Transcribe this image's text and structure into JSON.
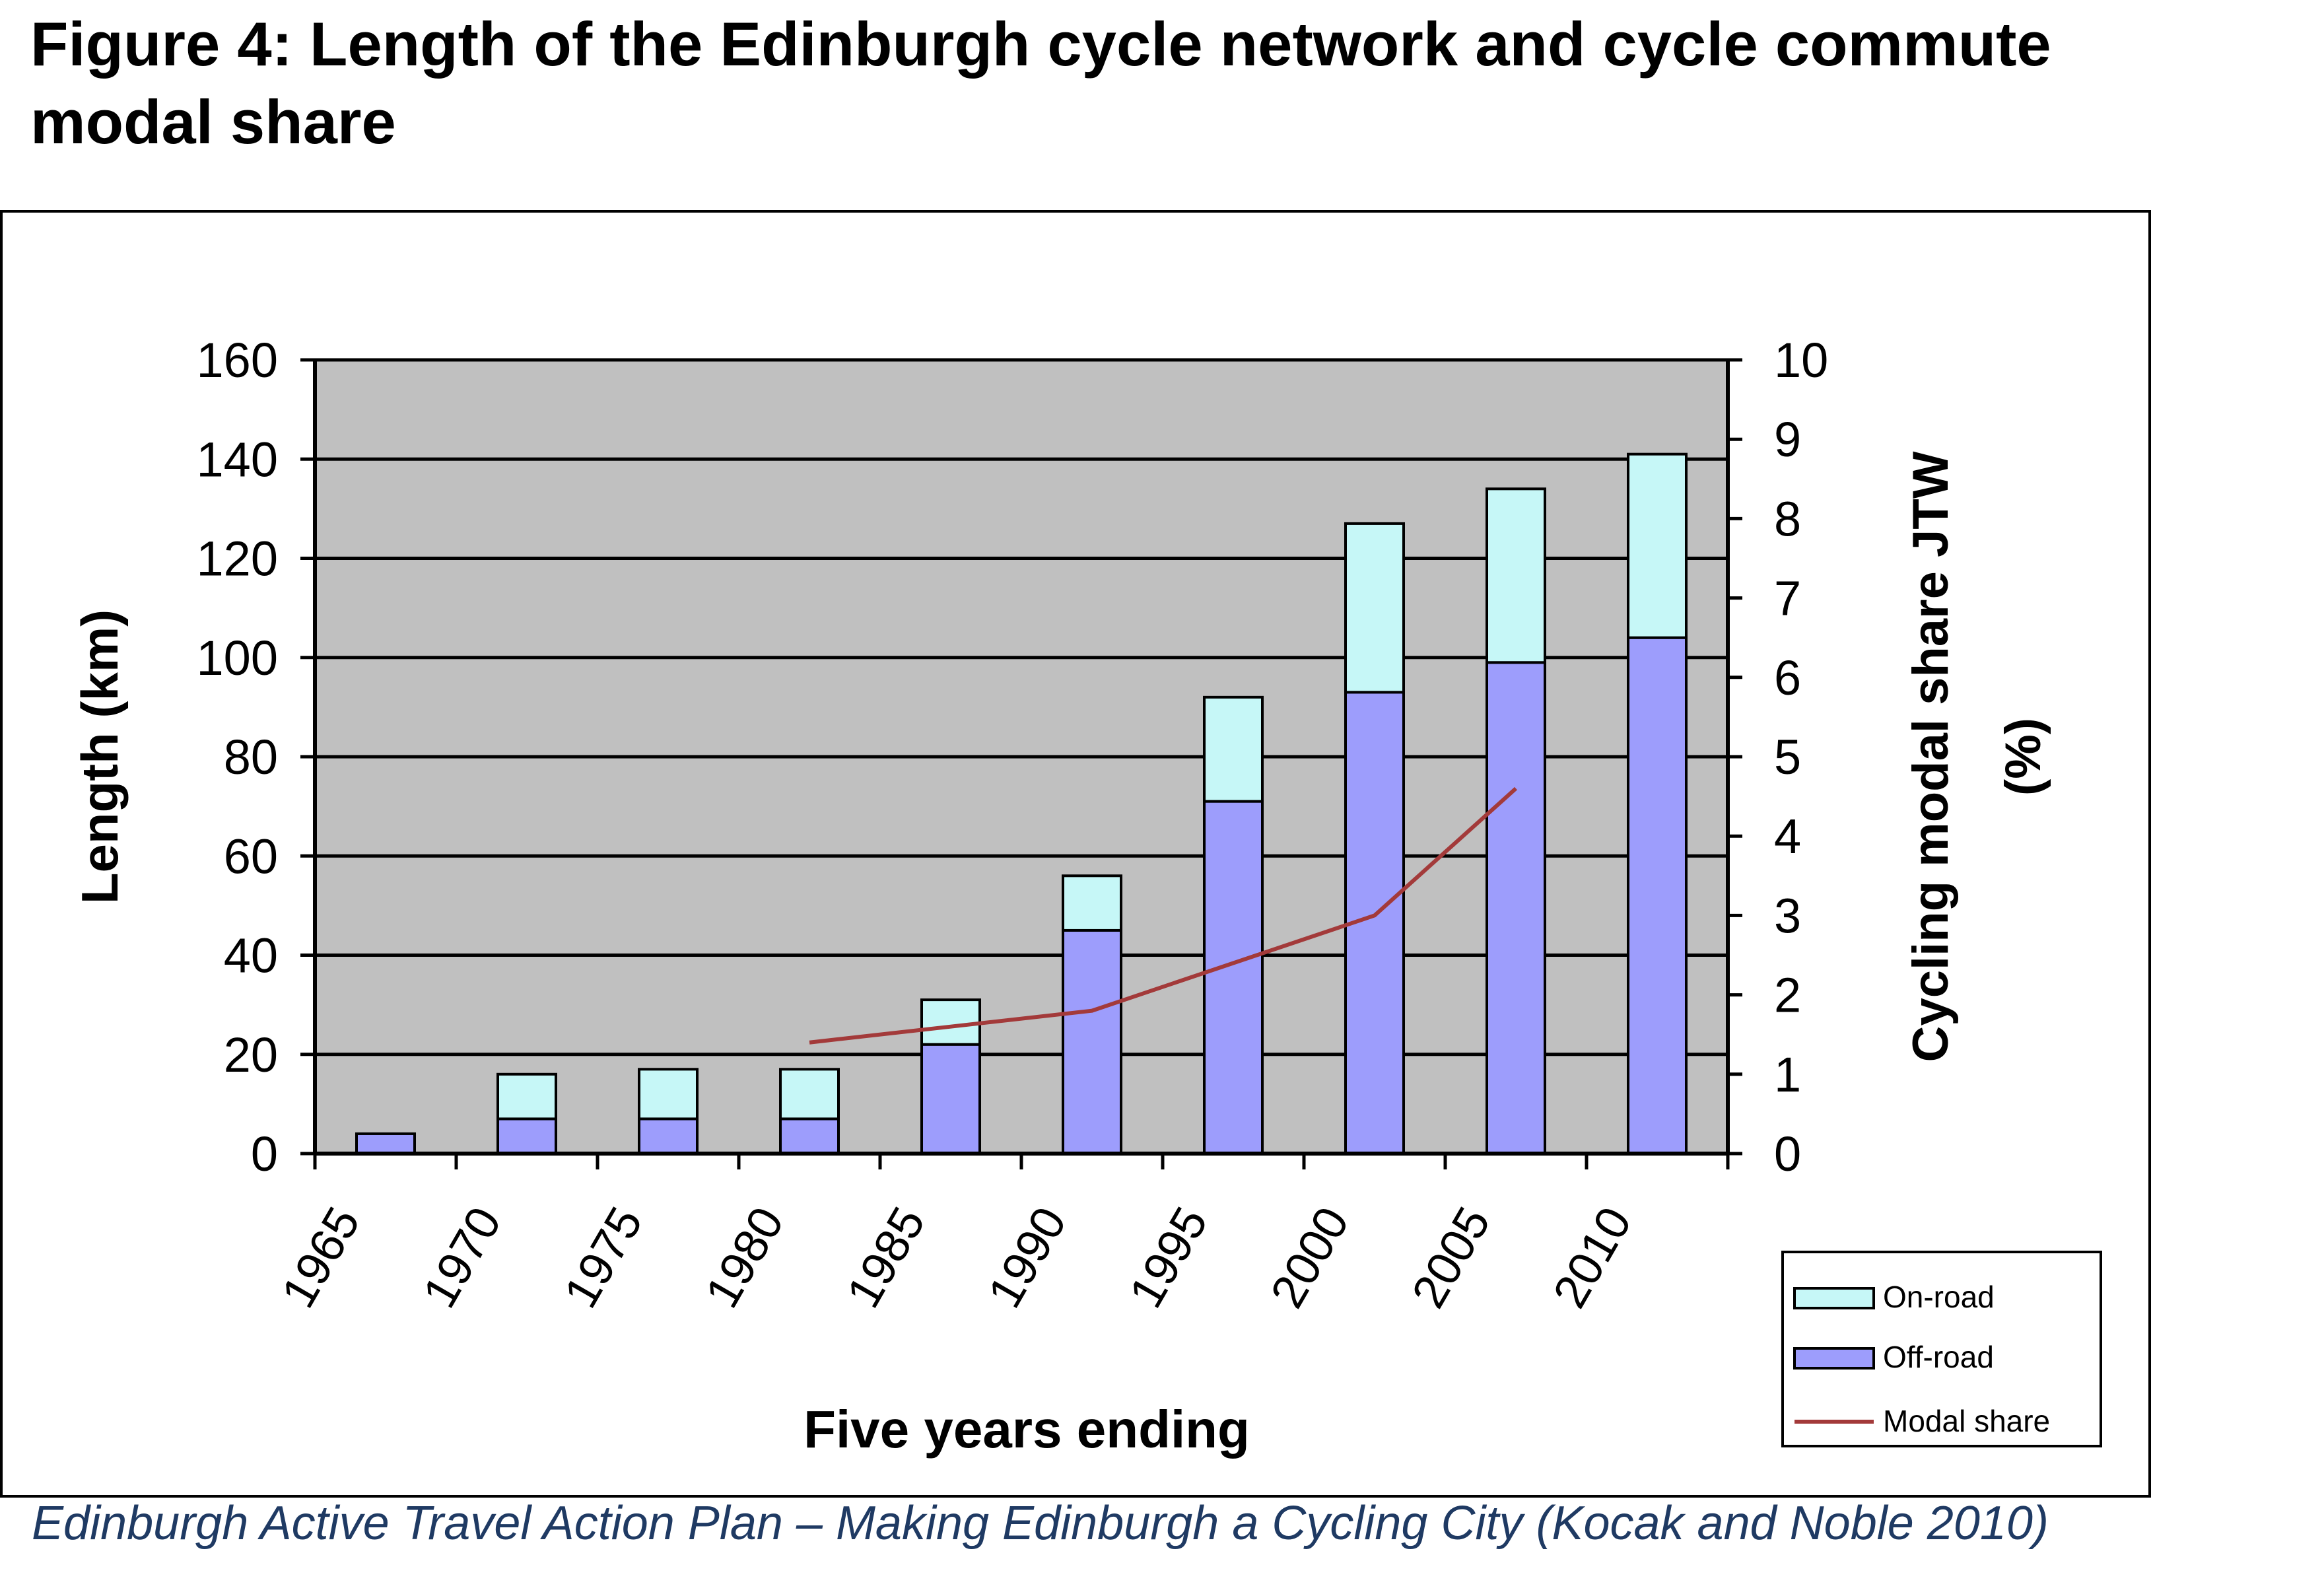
{
  "figure_title": "Figure 4: Length of the Edinburgh cycle network and cycle commute modal share",
  "caption": "Edinburgh Active Travel Action Plan – Making Edinburgh a Cycling City (Kocak and Noble 2010)",
  "colors": {
    "on_road": "#c6f7f7",
    "off_road": "#9d9dfc",
    "modal_share": "#a33a3a",
    "plot_background": "#c0c0c0",
    "caption_text": "#1f3a63"
  },
  "chart_data": {
    "type": "bar",
    "stacked": true,
    "categories": [
      "1965",
      "1970",
      "1975",
      "1980",
      "1985",
      "1990",
      "1995",
      "2000",
      "2005",
      "2010"
    ],
    "series": [
      {
        "name": "Off-road",
        "axis": "left",
        "values": [
          4,
          7,
          7,
          7,
          22,
          45,
          71,
          93,
          99,
          104
        ]
      },
      {
        "name": "On-road",
        "axis": "left",
        "values": [
          0,
          9,
          10,
          10,
          9,
          11,
          21,
          34,
          35,
          37
        ]
      },
      {
        "name": "Modal share",
        "type": "line",
        "axis": "right",
        "values": [
          null,
          null,
          null,
          1.4,
          1.6,
          1.8,
          2.4,
          3.0,
          4.6,
          null
        ]
      }
    ],
    "xlabel": "Five years ending",
    "ylabel": "Length (km)",
    "y2label": [
      "Cycling modal share JTW",
      "(%)"
    ],
    "ylim": [
      0,
      160
    ],
    "yticks": [
      "0",
      "20",
      "40",
      "60",
      "80",
      "100",
      "120",
      "140",
      "160"
    ],
    "y2lim": [
      0,
      10
    ],
    "y2ticks": [
      "0",
      "1",
      "2",
      "3",
      "4",
      "5",
      "6",
      "7",
      "8",
      "9",
      "10"
    ],
    "grid": true,
    "legend": {
      "placement": "bottom-right",
      "entries": [
        "On-road",
        "Off-road",
        "Modal share"
      ]
    }
  }
}
